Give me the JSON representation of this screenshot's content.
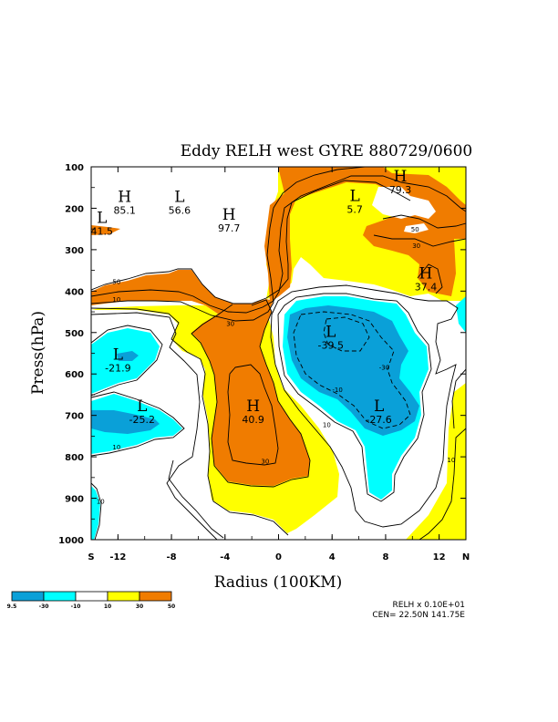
{
  "colors": {
    "dark_blue": "#0aa0d8",
    "cyan": "#00ffff",
    "white": "#ffffff",
    "yellow": "#ffff00",
    "orange": "#f07c00"
  },
  "chart_data": {
    "type": "contour",
    "title": "Eddy RELH west GYRE 880729/0600",
    "xlabel": "Radius (100KM)",
    "ylabel": "Press(hPa)",
    "xlim": [
      -14,
      14
    ],
    "ylim": [
      1000,
      100
    ],
    "x_ticks": [
      {
        "value": -14,
        "label": "S"
      },
      {
        "value": -12,
        "label": "-12"
      },
      {
        "value": -8,
        "label": "-8"
      },
      {
        "value": -4,
        "label": "-4"
      },
      {
        "value": 0,
        "label": "0"
      },
      {
        "value": 4,
        "label": "4"
      },
      {
        "value": 8,
        "label": "8"
      },
      {
        "value": 12,
        "label": "12"
      },
      {
        "value": 14,
        "label": "N"
      }
    ],
    "y_ticks": [
      {
        "value": 100,
        "label": "100"
      },
      {
        "value": 200,
        "label": "200"
      },
      {
        "value": 300,
        "label": "300"
      },
      {
        "value": 400,
        "label": "400"
      },
      {
        "value": 500,
        "label": "500"
      },
      {
        "value": 600,
        "label": "600"
      },
      {
        "value": 700,
        "label": "700"
      },
      {
        "value": 800,
        "label": "800"
      },
      {
        "value": 900,
        "label": "900"
      },
      {
        "value": 1000,
        "label": "1000"
      }
    ],
    "extrema": [
      {
        "type": "H",
        "value": "85.1",
        "x": -11.5,
        "y": 185
      },
      {
        "type": "L",
        "value": "56.6",
        "x": -7.4,
        "y": 185
      },
      {
        "type": "L",
        "value": "41.5",
        "x": -13.2,
        "y": 235
      },
      {
        "type": "H",
        "value": "97.7",
        "x": -3.7,
        "y": 228
      },
      {
        "type": "L",
        "value": "5.7",
        "x": 5.7,
        "y": 182
      },
      {
        "type": "H",
        "value": "79.3",
        "x": 9.1,
        "y": 135
      },
      {
        "type": "H",
        "value": "37.4",
        "x": 11.0,
        "y": 370
      },
      {
        "type": "L",
        "value": "-39.5",
        "x": 3.9,
        "y": 510
      },
      {
        "type": "L",
        "value": "-21.9",
        "x": -12.0,
        "y": 565
      },
      {
        "type": "L",
        "value": "-25.2",
        "x": -10.2,
        "y": 690
      },
      {
        "type": "H",
        "value": "40.9",
        "x": -1.9,
        "y": 690
      },
      {
        "type": "L",
        "value": "-27.6",
        "x": 7.5,
        "y": 690
      }
    ],
    "contour_labels": [
      {
        "text": "50",
        "x": -12.1,
        "y": 383
      },
      {
        "text": "10",
        "x": -12.1,
        "y": 426
      },
      {
        "text": "30",
        "x": -3.6,
        "y": 484
      },
      {
        "text": "-30",
        "x": 7.9,
        "y": 590
      },
      {
        "text": "-10",
        "x": 4.4,
        "y": 644
      },
      {
        "text": "10",
        "x": 3.6,
        "y": 728
      },
      {
        "text": "30",
        "x": -1.0,
        "y": 816
      },
      {
        "text": "10",
        "x": -12.1,
        "y": 782
      },
      {
        "text": "10",
        "x": -13.3,
        "y": 913
      },
      {
        "text": "10",
        "x": 12.9,
        "y": 813
      },
      {
        "text": "50",
        "x": 10.2,
        "y": 256
      },
      {
        "text": "30",
        "x": 10.3,
        "y": 296
      }
    ],
    "legend": {
      "values": [
        "9.5",
        "-30",
        "-10",
        "10",
        "30",
        "50"
      ],
      "colors": [
        "#0aa0d8",
        "#00ffff",
        "#ffffff",
        "#ffff00",
        "#f07c00"
      ]
    },
    "annotations": [
      "RELH x  0.10E+01",
      "CEN= 22.50N  141.75E"
    ]
  }
}
